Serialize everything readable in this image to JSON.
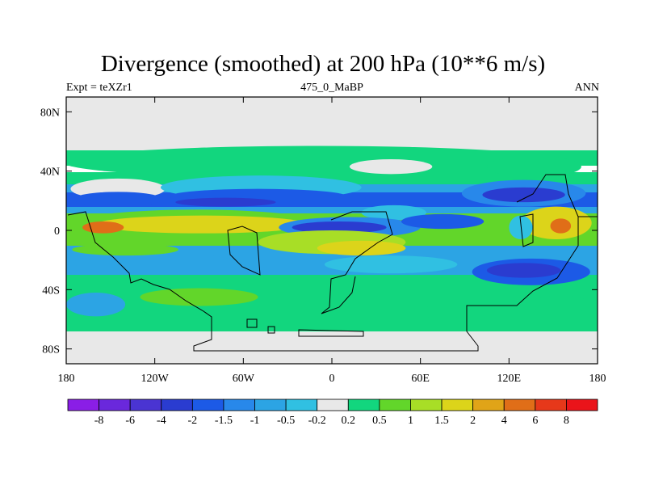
{
  "title": "Divergence (smoothed) at 200 hPa (10**6 m/s)",
  "left_label": "Expt = teXZr1",
  "center_label": "475_0_MaBP",
  "right_label": "ANN",
  "chart_data": {
    "type": "heatmap",
    "title": "Divergence (smoothed) at 200 hPa (10**6 m/s)",
    "projection": "cylindrical-equidistant",
    "x_range": [
      -180,
      180
    ],
    "y_range": [
      -90,
      90
    ],
    "x_ticks": [
      {
        "value": -180,
        "label": "180"
      },
      {
        "value": -120,
        "label": "120W"
      },
      {
        "value": -60,
        "label": "60W"
      },
      {
        "value": 0,
        "label": "0"
      },
      {
        "value": 60,
        "label": "60E"
      },
      {
        "value": 120,
        "label": "120E"
      },
      {
        "value": 180,
        "label": "180"
      }
    ],
    "y_ticks": [
      {
        "value": 80,
        "label": "80N"
      },
      {
        "value": 40,
        "label": "40N"
      },
      {
        "value": 0,
        "label": "0"
      },
      {
        "value": -40,
        "label": "40S"
      },
      {
        "value": -80,
        "label": "80S"
      }
    ],
    "colorbar": {
      "colors": [
        "#8a1ee6",
        "#6a28dc",
        "#4a34d2",
        "#2a3cd0",
        "#1c5ae6",
        "#2888ea",
        "#2ca4e4",
        "#30c0e2",
        "#e8e8e8",
        "#12d67e",
        "#62d62a",
        "#a8de26",
        "#dcd41a",
        "#e0a418",
        "#e06e18",
        "#e6381a",
        "#ea141a"
      ],
      "labels": [
        "-8",
        "-6",
        "-4",
        "-2",
        "-1.5",
        "-1",
        "-0.5",
        "-0.2",
        "0.2",
        "0.5",
        "1",
        "1.5",
        "2",
        "4",
        "6",
        "8"
      ]
    },
    "features": [
      {
        "lon": -10,
        "lat": 46,
        "rx": 172,
        "ry": 11,
        "level": 9
      },
      {
        "lon": -145,
        "lat": 28,
        "rx": 32,
        "ry": 7,
        "level": 8
      },
      {
        "lon": -48,
        "lat": 29,
        "rx": 68,
        "ry": 8,
        "level": 7
      },
      {
        "lon": -145,
        "lat": 21,
        "rx": 30,
        "ry": 5,
        "level": 4
      },
      {
        "lon": -50,
        "lat": 23,
        "rx": 60,
        "ry": 5,
        "level": 4
      },
      {
        "lon": -72,
        "lat": 19,
        "rx": 34,
        "ry": 3,
        "level": 3
      },
      {
        "lon": 40,
        "lat": 43,
        "rx": 28,
        "ry": 5,
        "level": 8
      },
      {
        "lon": 137,
        "lat": 43,
        "rx": 32,
        "ry": 7,
        "level": 9
      },
      {
        "lon": 130,
        "lat": 25,
        "rx": 42,
        "ry": 9,
        "level": 5
      },
      {
        "lon": 130,
        "lat": 24,
        "rx": 28,
        "ry": 5,
        "level": 3
      },
      {
        "lon": -92,
        "lat": 5,
        "rx": 82,
        "ry": 9,
        "level": 10
      },
      {
        "lon": -88,
        "lat": 4,
        "rx": 72,
        "ry": 6,
        "level": 12
      },
      {
        "lon": -155,
        "lat": 2,
        "rx": 14,
        "ry": 4,
        "level": 14
      },
      {
        "lon": 42,
        "lat": 12,
        "rx": 22,
        "ry": 5,
        "level": 7
      },
      {
        "lon": 12,
        "lat": 2,
        "rx": 48,
        "ry": 7,
        "level": 5
      },
      {
        "lon": 5,
        "lat": 2,
        "rx": 32,
        "ry": 4,
        "level": 3
      },
      {
        "lon": 75,
        "lat": 6,
        "rx": 28,
        "ry": 5,
        "level": 4
      },
      {
        "lon": 0,
        "lat": -8,
        "rx": 50,
        "ry": 8,
        "level": 11
      },
      {
        "lon": 20,
        "lat": -12,
        "rx": 30,
        "ry": 5,
        "level": 12
      },
      {
        "lon": 152,
        "lat": 5,
        "rx": 24,
        "ry": 11,
        "level": 12
      },
      {
        "lon": 155,
        "lat": 3,
        "rx": 7,
        "ry": 5,
        "level": 14
      },
      {
        "lon": 128,
        "lat": 2,
        "rx": 8,
        "ry": 8,
        "level": 7
      },
      {
        "lon": -120,
        "lat": -22,
        "rx": 55,
        "ry": 7,
        "level": 6
      },
      {
        "lon": -140,
        "lat": -13,
        "rx": 36,
        "ry": 4,
        "level": 10
      },
      {
        "lon": 40,
        "lat": -23,
        "rx": 45,
        "ry": 6,
        "level": 7
      },
      {
        "lon": 135,
        "lat": -28,
        "rx": 40,
        "ry": 9,
        "level": 4
      },
      {
        "lon": 130,
        "lat": -27,
        "rx": 25,
        "ry": 5,
        "level": 3
      },
      {
        "lon": -90,
        "lat": -45,
        "rx": 40,
        "ry": 6,
        "level": 10
      },
      {
        "lon": -160,
        "lat": -50,
        "rx": 20,
        "ry": 8,
        "level": 6
      },
      {
        "lon": 75,
        "lat": -55,
        "rx": 14,
        "ry": 5,
        "level": 9
      },
      {
        "lon": 155,
        "lat": -50,
        "rx": 20,
        "ry": 6,
        "level": 9
      }
    ]
  }
}
